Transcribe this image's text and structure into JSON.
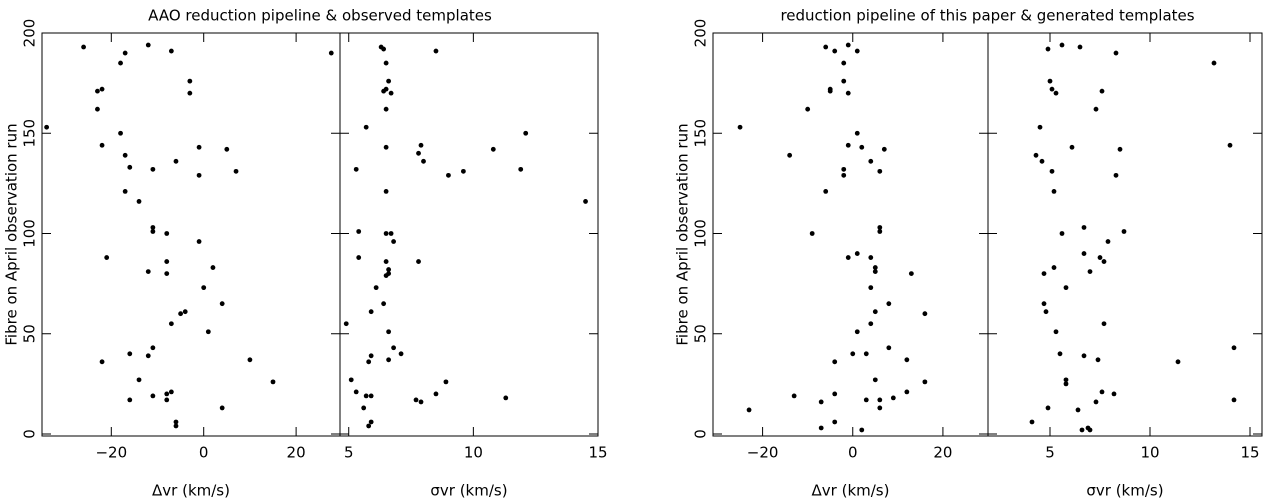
{
  "chart_data": [
    {
      "type": "scatter",
      "title": "AAO reduction pipeline & observed templates",
      "xlabel": "Δvr (km/s)",
      "ylabel": "Fibre on April observation run",
      "color": "#000000",
      "xlim": [
        -35,
        29.5
      ],
      "ylim": [
        -1,
        200
      ],
      "xticks": [
        {
          "value": -20,
          "label": "−20"
        },
        0,
        20
      ],
      "yticks": [
        0,
        50,
        100,
        150,
        200
      ],
      "x": [
        -26,
        -12,
        -17,
        -7,
        -18,
        -22,
        -23,
        -23,
        -3,
        -3,
        -34,
        -18,
        -22,
        -17,
        -16,
        -6,
        -1,
        5,
        -11,
        -1,
        7,
        -17,
        -14,
        -11,
        -11,
        -8,
        -1,
        -21,
        -8,
        -12,
        -8,
        2,
        0,
        -4,
        -5,
        4,
        -7,
        1,
        -11,
        -16,
        -12,
        -22,
        10,
        15,
        -14,
        -7,
        -11,
        -8,
        -8,
        -16,
        -6,
        -6,
        4
      ],
      "y": [
        193,
        194,
        190,
        191,
        185,
        172,
        171,
        162,
        176,
        170,
        153,
        150,
        144,
        139,
        133,
        136,
        143,
        142,
        132,
        129,
        131,
        121,
        116,
        103,
        101,
        100,
        96,
        88,
        86,
        81,
        80,
        83,
        73,
        61,
        60,
        65,
        55,
        51,
        43,
        40,
        39,
        36,
        37,
        26,
        27,
        21,
        19,
        20,
        17,
        17,
        6,
        4,
        13
      ]
    },
    {
      "type": "scatter",
      "xlabel": "σvr (km/s)",
      "color": "#000000",
      "xlim": [
        4.65,
        15.0
      ],
      "ylim": [
        -1,
        200
      ],
      "xticks": [
        5,
        10,
        15
      ],
      "yticks": [
        0,
        50,
        100,
        150,
        200
      ],
      "x": [
        4.3,
        6.3,
        6.4,
        8.5,
        6.5,
        6.6,
        6.5,
        6.4,
        6.7,
        6.5,
        5.7,
        6.5,
        7.9,
        7.8,
        8.0,
        5.3,
        9.0,
        9.6,
        10.8,
        12.1,
        11.9,
        14.5,
        6.5,
        5.4,
        6.5,
        6.7,
        6.8,
        5.4,
        6.5,
        6.6,
        6.6,
        6.5,
        7.8,
        6.1,
        6.4,
        5.9,
        4.9,
        6.6,
        6.8,
        7.1,
        5.9,
        5.8,
        6.6,
        5.1,
        5.3,
        5.7,
        5.9,
        5.6,
        5.9,
        5.8,
        7.7,
        7.9,
        8.5,
        8.9,
        11.3
      ],
      "y": [
        190,
        193,
        192,
        191,
        185,
        176,
        172,
        171,
        170,
        162,
        153,
        143,
        144,
        140,
        136,
        132,
        129,
        131,
        142,
        150,
        132,
        116,
        121,
        101,
        100,
        100,
        96,
        88,
        86,
        82,
        80,
        79,
        86,
        73,
        65,
        61,
        55,
        51,
        43,
        40,
        39,
        36,
        37,
        27,
        21,
        19,
        19,
        13,
        6,
        4,
        17,
        16,
        20,
        26,
        18
      ]
    },
    {
      "type": "scatter",
      "title": "reduction pipeline of this paper & generated templates",
      "xlabel": "Δvr (km/s)",
      "ylabel": "Fibre on April observation run",
      "color": "#000000",
      "xlim": [
        -31,
        30
      ],
      "ylim": [
        -1,
        200
      ],
      "xticks": [
        {
          "value": -20,
          "label": "−20"
        },
        0,
        20
      ],
      "yticks": [
        0,
        50,
        100,
        150,
        200
      ],
      "x": [
        -6,
        -4,
        -1,
        1,
        -2,
        -5,
        -5,
        -2,
        -1,
        -10,
        -25,
        1,
        -14,
        -1,
        2,
        -2,
        -2,
        4,
        7,
        6,
        -6,
        6,
        6,
        -9,
        1,
        -1,
        4,
        5,
        5,
        13,
        4,
        8,
        5,
        16,
        1,
        4,
        8,
        12,
        0,
        3,
        -4,
        5,
        6,
        9,
        -13,
        -4,
        -7,
        -23,
        -4,
        -7,
        2,
        12,
        16,
        3,
        6
      ],
      "y": [
        193,
        191,
        194,
        191,
        185,
        172,
        171,
        176,
        170,
        162,
        153,
        150,
        139,
        144,
        143,
        132,
        129,
        136,
        142,
        131,
        121,
        103,
        101,
        100,
        90,
        88,
        88,
        83,
        81,
        80,
        73,
        65,
        61,
        60,
        51,
        55,
        43,
        37,
        40,
        40,
        36,
        27,
        13,
        18,
        19,
        20,
        16,
        12,
        6,
        3,
        2,
        21,
        26,
        17,
        17
      ]
    },
    {
      "type": "scatter",
      "xlabel": "σvr (km/s)",
      "color": "#000000",
      "xlim": [
        1.9,
        15.6
      ],
      "ylim": [
        -1,
        200
      ],
      "xticks": [
        5,
        10,
        15
      ],
      "yticks": [
        0,
        50,
        100,
        150,
        200
      ],
      "x": [
        4.9,
        5.6,
        6.5,
        8.3,
        13.2,
        5.0,
        5.1,
        5.3,
        7.6,
        7.3,
        4.5,
        4.3,
        4.6,
        5.1,
        6.1,
        8.5,
        8.3,
        14.0,
        5.2,
        8.7,
        6.7,
        5.6,
        7.9,
        7.5,
        7.7,
        6.7,
        7.0,
        5.2,
        4.7,
        5.8,
        4.7,
        4.8,
        7.7,
        5.3,
        14.2,
        5.5,
        6.7,
        7.4,
        11.4,
        5.8,
        5.8,
        7.6,
        8.2,
        7.3,
        4.9,
        6.4,
        14.2,
        4.1,
        6.9,
        7.0,
        6.6
      ],
      "y": [
        192,
        194,
        193,
        190,
        185,
        176,
        172,
        170,
        171,
        162,
        153,
        139,
        136,
        131,
        143,
        142,
        129,
        144,
        121,
        101,
        103,
        100,
        96,
        88,
        86,
        90,
        81,
        83,
        80,
        73,
        65,
        61,
        55,
        51,
        43,
        40,
        39,
        37,
        36,
        27,
        25,
        21,
        20,
        16,
        13,
        12,
        17,
        6,
        3,
        2,
        2
      ]
    }
  ]
}
